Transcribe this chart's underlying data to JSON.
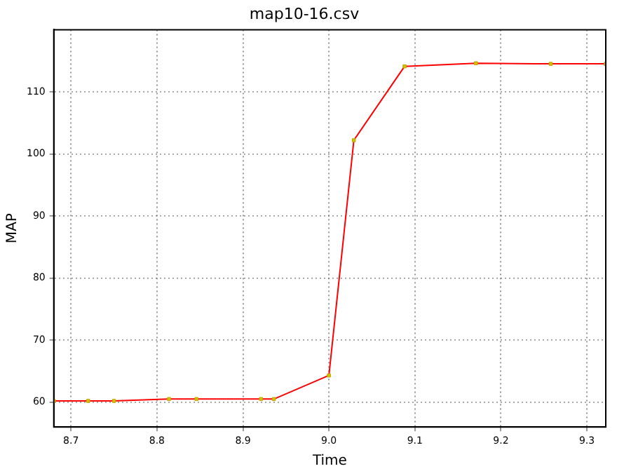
{
  "chart_data": {
    "type": "line",
    "title": "map10-16.csv",
    "xlabel": "Time",
    "ylabel": "MAP",
    "x": [
      8.68,
      8.72,
      8.75,
      8.814,
      8.846,
      8.921,
      8.936,
      9.0,
      9.029,
      9.088,
      9.171,
      9.258,
      9.322
    ],
    "series": [
      {
        "color": "#ff0000",
        "values": [
          60.2,
          60.2,
          60.2,
          60.5,
          60.5,
          60.5,
          60.5,
          64.3,
          102.2,
          114.1,
          114.6,
          114.5,
          114.5
        ]
      }
    ],
    "xlim": [
      8.68,
      9.322
    ],
    "xticks": [
      8.7,
      8.8,
      8.9,
      {
        "value": 9,
        "label": "9.0"
      },
      9.1,
      9.2,
      9.3
    ],
    "ylim": [
      56,
      120
    ],
    "yticks": [
      60,
      70,
      80,
      90,
      100,
      110
    ],
    "grid": true,
    "legend": false,
    "marker": "square",
    "line_style": "solid"
  }
}
